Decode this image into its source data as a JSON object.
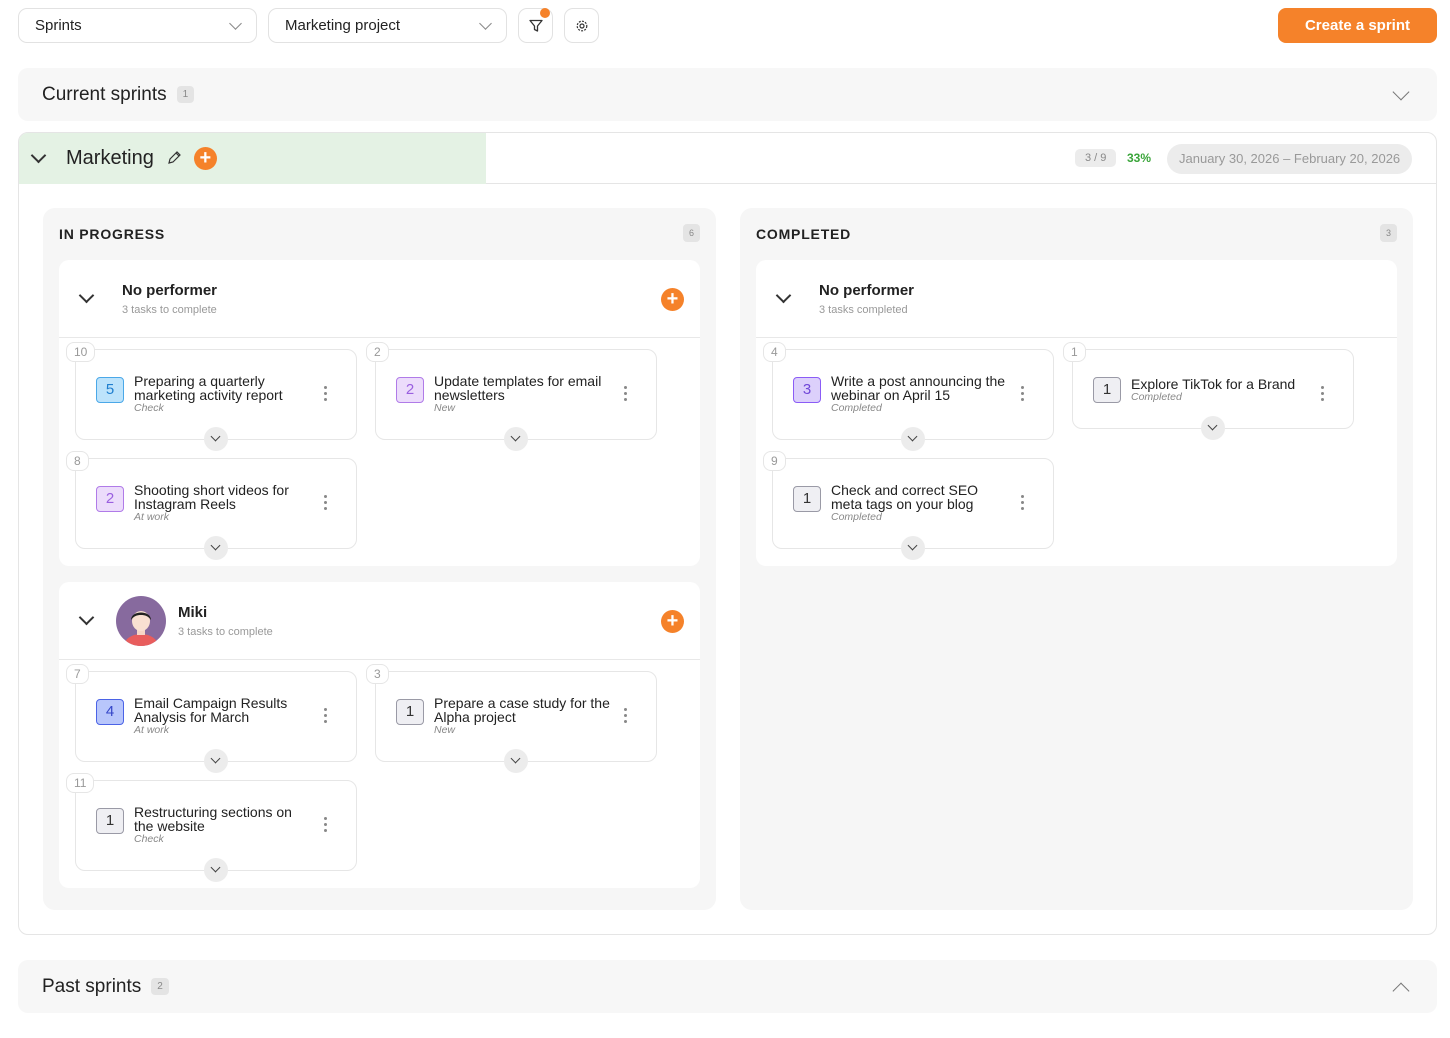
{
  "toolbar": {
    "view_select": "Sprints",
    "project_select": "Marketing project",
    "filter_icon": "filter-icon",
    "settings_icon": "gear-icon",
    "create_label": "Create a sprint",
    "accent": "#f5822a"
  },
  "current": {
    "title": "Current sprints",
    "count": "1"
  },
  "past": {
    "title": "Past sprints",
    "count": "2"
  },
  "sprint": {
    "name": "Marketing",
    "progress": "3 / 9",
    "percent": "33%",
    "dates": "January 30, 2026 – February 20, 2026"
  },
  "columns": [
    {
      "title": "IN PROGRESS",
      "count": "6",
      "groups": [
        {
          "name": "No performer",
          "sub": "3 tasks to complete",
          "avatar": false,
          "tasks": [
            {
              "num": "10",
              "points": "5",
              "color": "blue",
              "title": "Preparing a quarterly marketing activity report",
              "status": "Check"
            },
            {
              "num": "2",
              "points": "2",
              "color": "purple",
              "title": "Update templates for email newsletters",
              "status": "New"
            },
            {
              "num": "8",
              "points": "2",
              "color": "purple",
              "title": "Shooting short videos for Instagram Reels",
              "status": "At work"
            }
          ]
        },
        {
          "name": "Miki",
          "sub": "3 tasks to complete",
          "avatar": true,
          "tasks": [
            {
              "num": "7",
              "points": "4",
              "color": "indigo",
              "title": "Email Campaign Results Analysis for March",
              "status": "At work"
            },
            {
              "num": "3",
              "points": "1",
              "color": "grey",
              "title": "Prepare a case study for the Alpha project",
              "status": "New"
            },
            {
              "num": "11",
              "points": "1",
              "color": "grey",
              "title": "Restructuring sections on the website",
              "status": "Check"
            }
          ]
        }
      ]
    },
    {
      "title": "COMPLETED",
      "count": "3",
      "groups": [
        {
          "name": "No performer",
          "sub": "3 tasks completed",
          "avatar": false,
          "tasks": [
            {
              "num": "4",
              "points": "3",
              "color": "violet",
              "title": "Write a post announcing the webinar on April 15",
              "status": "Completed"
            },
            {
              "num": "1",
              "points": "1",
              "color": "grey",
              "title": "Explore TikTok for a Brand",
              "status": "Completed"
            },
            {
              "num": "9",
              "points": "1",
              "color": "grey",
              "title": "Check and correct SEO meta tags on your blog",
              "status": "Completed"
            }
          ]
        }
      ]
    }
  ],
  "badge_colors": {
    "blue": {
      "bg": "#bde3fb",
      "border": "#4aa8e8",
      "text": "#1f7fcf"
    },
    "purple": {
      "bg": "#ecdcfb",
      "border": "#b07be8",
      "text": "#9a5fe0"
    },
    "violet": {
      "bg": "#dcd0fb",
      "border": "#8b5cf6",
      "text": "#7048d8"
    },
    "indigo": {
      "bg": "#b8c6fb",
      "border": "#4b63e6",
      "text": "#3546c8"
    },
    "grey": {
      "bg": "#efeff3",
      "border": "#9a9aa6",
      "text": "#333333"
    }
  }
}
